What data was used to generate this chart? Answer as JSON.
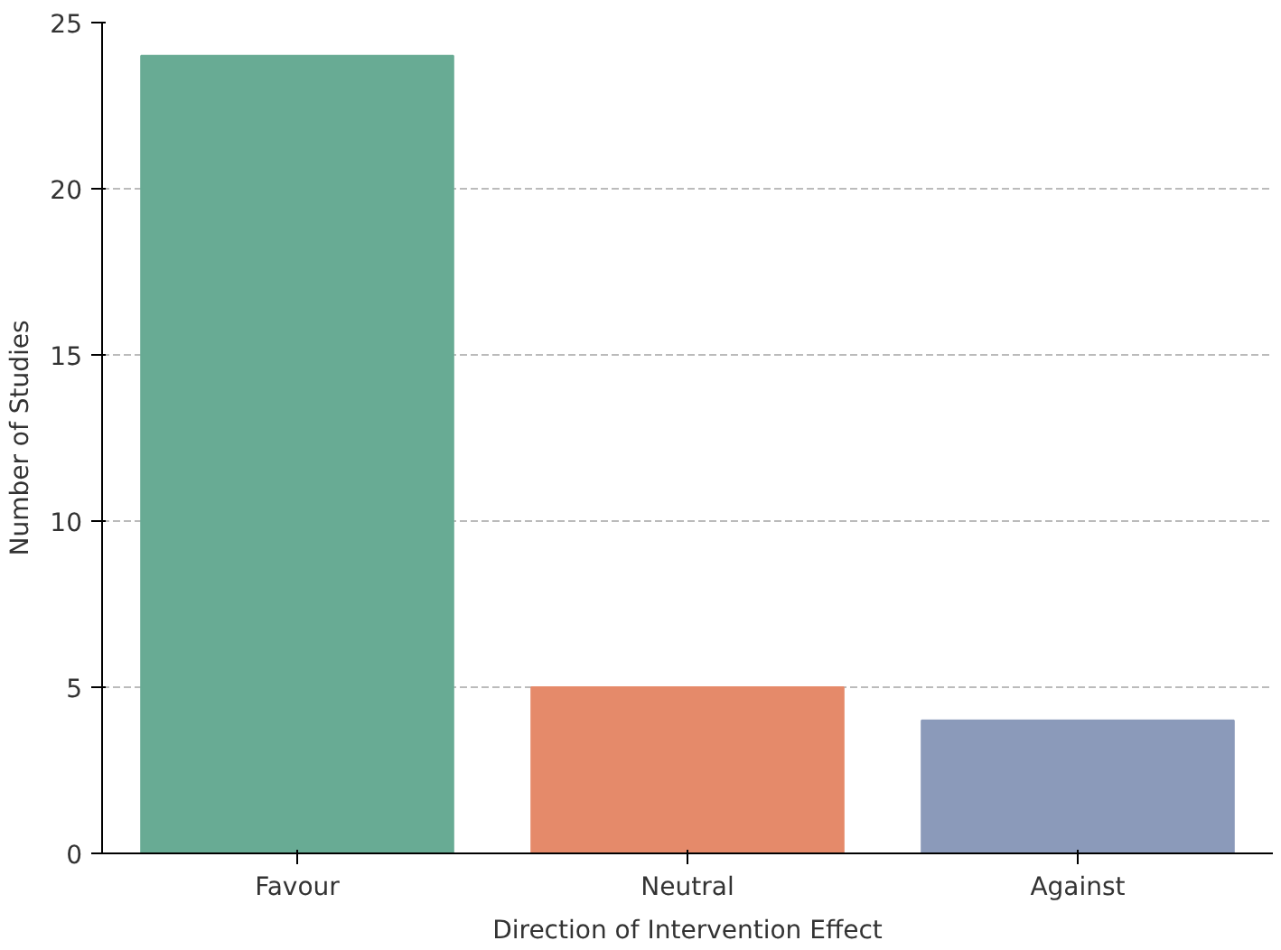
{
  "chart_data": {
    "type": "bar",
    "xlabel": "Direction of Intervention Effect",
    "ylabel": "Number of Studies",
    "categories": [
      "Favour",
      "Neutral",
      "Against"
    ],
    "values": [
      24,
      5,
      4
    ],
    "colors": [
      "#68ab94",
      "#e58a6a",
      "#8b9aba"
    ],
    "ylim": [
      0,
      25
    ],
    "yticks": [
      0,
      5,
      10,
      15,
      20,
      25
    ],
    "grid": "y"
  }
}
